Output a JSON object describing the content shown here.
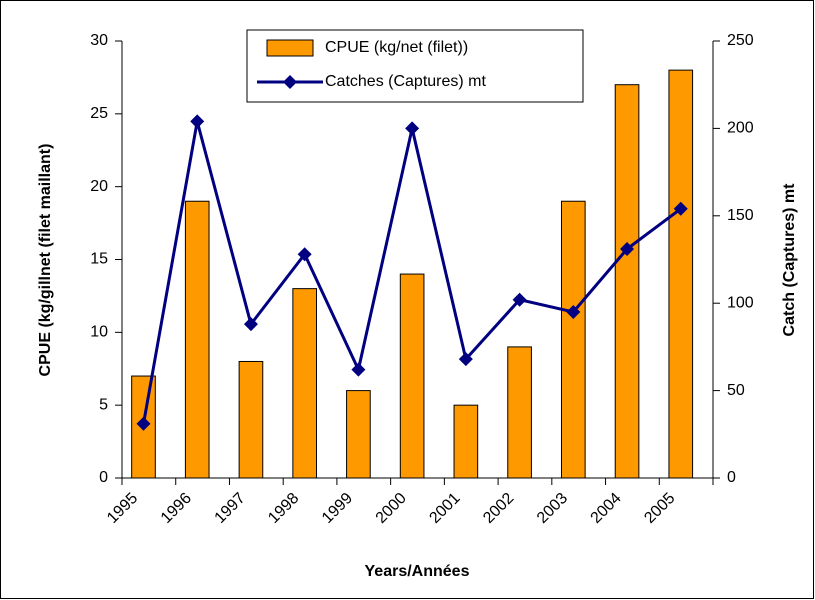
{
  "chart_data": {
    "type": "bar_line",
    "categories": [
      "1995",
      "1996",
      "1997",
      "1998",
      "1999",
      "2000",
      "2001",
      "2002",
      "2003",
      "2004",
      "2005"
    ],
    "series": [
      {
        "name": "CPUE (kg/net (filet))",
        "type": "bar",
        "color": "#ff9900",
        "values": [
          7,
          19,
          8,
          13,
          6,
          14,
          5,
          9,
          19,
          27,
          28
        ]
      },
      {
        "name": "Catches (Captures) mt",
        "type": "line",
        "axis": "y2",
        "color": "#000080",
        "values": [
          31,
          204,
          88,
          128,
          62,
          200,
          68,
          102,
          95,
          131,
          154
        ]
      }
    ],
    "xlabel": "Years/Années",
    "ylabel": "CPUE (kg/gillnet (filet maillant)",
    "y2label": "Catch (Captures) mt",
    "ylim": [
      0,
      30
    ],
    "yticks": [
      0,
      5,
      10,
      15,
      20,
      25,
      30
    ],
    "y2lim": [
      0,
      250
    ],
    "y2ticks": [
      0,
      50,
      100,
      150,
      200,
      250
    ],
    "legend": "top",
    "grid": false
  }
}
